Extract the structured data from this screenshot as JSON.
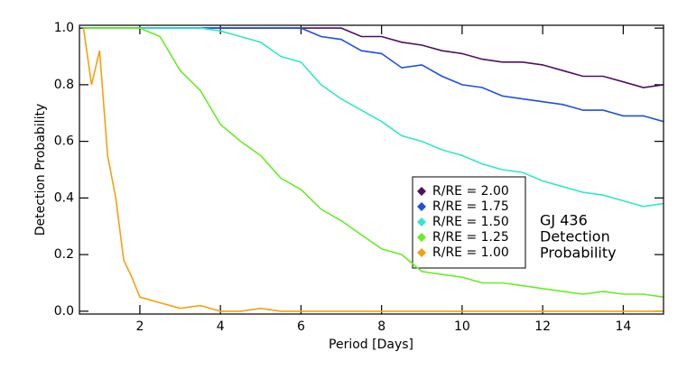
{
  "chart_data": {
    "type": "line",
    "xlabel": "Period [Days]",
    "ylabel": "Detection Probability",
    "annotation": [
      "GJ 436",
      "Detection",
      "Probability"
    ],
    "x": [
      0.6,
      0.8,
      1.0,
      1.2,
      1.4,
      1.6,
      1.8,
      2.0,
      2.5,
      3.0,
      3.5,
      4.0,
      4.5,
      5.0,
      5.5,
      6.0,
      6.5,
      7.0,
      7.5,
      8.0,
      8.5,
      9.0,
      9.5,
      10.0,
      10.5,
      11.0,
      11.5,
      12.0,
      12.5,
      13.0,
      13.5,
      14.0,
      14.5,
      15.0
    ],
    "series": [
      {
        "name": "R/RE = 2.00",
        "color": "#4f1060",
        "values": [
          1,
          1,
          1,
          1,
          1,
          1,
          1,
          1,
          1,
          1,
          1,
          1,
          1,
          1,
          1,
          1,
          1,
          1,
          0.97,
          0.97,
          0.95,
          0.94,
          0.92,
          0.91,
          0.89,
          0.88,
          0.88,
          0.87,
          0.85,
          0.83,
          0.83,
          0.81,
          0.79,
          0.8
        ]
      },
      {
        "name": "R/RE = 1.75",
        "color": "#1f4fe0",
        "values": [
          1,
          1,
          1,
          1,
          1,
          1,
          1,
          1,
          1,
          1,
          1,
          1,
          1,
          1,
          1,
          1,
          0.97,
          0.96,
          0.92,
          0.91,
          0.86,
          0.87,
          0.83,
          0.8,
          0.79,
          0.76,
          0.75,
          0.74,
          0.73,
          0.71,
          0.71,
          0.69,
          0.69,
          0.67
        ]
      },
      {
        "name": "R/RE = 1.50",
        "color": "#30e8c8",
        "values": [
          1,
          1,
          1,
          1,
          1,
          1,
          1,
          1,
          1,
          1,
          1,
          0.99,
          0.97,
          0.95,
          0.9,
          0.88,
          0.8,
          0.75,
          0.71,
          0.67,
          0.62,
          0.6,
          0.57,
          0.55,
          0.52,
          0.5,
          0.49,
          0.46,
          0.44,
          0.42,
          0.41,
          0.39,
          0.37,
          0.38
        ]
      },
      {
        "name": "R/RE = 1.25",
        "color": "#66ee22",
        "values": [
          1,
          1,
          1,
          1,
          1,
          1,
          1,
          1,
          0.97,
          0.85,
          0.78,
          0.66,
          0.6,
          0.55,
          0.47,
          0.43,
          0.36,
          0.32,
          0.27,
          0.22,
          0.2,
          0.14,
          0.13,
          0.12,
          0.1,
          0.1,
          0.09,
          0.08,
          0.07,
          0.06,
          0.07,
          0.06,
          0.06,
          0.05
        ]
      },
      {
        "name": "R/RE = 1.00",
        "color": "#f5a010",
        "values": [
          1,
          0.8,
          0.92,
          0.55,
          0.4,
          0.18,
          0.12,
          0.05,
          0.03,
          0.01,
          0.02,
          0,
          0,
          0.01,
          0,
          0,
          0,
          0,
          0,
          0,
          0,
          0,
          0,
          0,
          0,
          0,
          0,
          0,
          0,
          0,
          0,
          0,
          0,
          0
        ]
      }
    ],
    "xlim": [
      0.5,
      15
    ],
    "ylim": [
      -0.01,
      1.01
    ],
    "xticks": [
      2,
      4,
      6,
      8,
      10,
      12,
      14
    ],
    "yticks": [
      {
        "value": 0,
        "label": "0.0"
      },
      0.2,
      0.4,
      0.6,
      0.8,
      {
        "value": 1,
        "label": "1.0"
      }
    ]
  }
}
